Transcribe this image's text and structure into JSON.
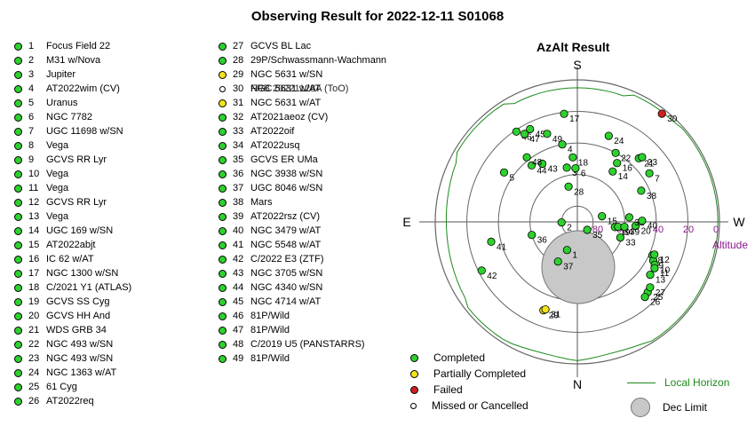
{
  "title": "Observing Result for 2022-12-11 S01068",
  "colors": {
    "completed": "#2ed12e",
    "partial": "#f3e41c",
    "failed": "#d11f1f",
    "missed": "#ffffff",
    "horizon": "#1b8a1b",
    "altitude_label": "#8a1a8a",
    "dec_limit": "#c8c8c8"
  },
  "list_col1": [
    {
      "n": "1",
      "name": "Focus Field 22",
      "status": "completed"
    },
    {
      "n": "2",
      "name": "M31 w/Nova",
      "status": "completed"
    },
    {
      "n": "3",
      "name": "Jupiter",
      "status": "completed"
    },
    {
      "n": "4",
      "name": "AT2022wim (CV)",
      "status": "completed"
    },
    {
      "n": "5",
      "name": "Uranus",
      "status": "completed"
    },
    {
      "n": "6",
      "name": "NGC 7782",
      "status": "completed"
    },
    {
      "n": "7",
      "name": "UGC 11698 w/SN",
      "status": "completed"
    },
    {
      "n": "8",
      "name": "Vega",
      "status": "completed"
    },
    {
      "n": "9",
      "name": "GCVS RR Lyr",
      "status": "completed"
    },
    {
      "n": "10",
      "name": "Vega",
      "status": "completed"
    },
    {
      "n": "11",
      "name": "Vega",
      "status": "completed"
    },
    {
      "n": "12",
      "name": "GCVS RR Lyr",
      "status": "completed"
    },
    {
      "n": "13",
      "name": "Vega",
      "status": "completed"
    },
    {
      "n": "14",
      "name": "UGC 169 w/SN",
      "status": "completed"
    },
    {
      "n": "15",
      "name": "AT2022abjt",
      "status": "completed"
    },
    {
      "n": "16",
      "name": "IC 62 w/AT",
      "status": "completed"
    },
    {
      "n": "17",
      "name": "NGC 1300 w/SN",
      "status": "completed"
    },
    {
      "n": "18",
      "name": "C/2021 Y1 (ATLAS)",
      "status": "completed"
    },
    {
      "n": "19",
      "name": "GCVS SS Cyg",
      "status": "completed"
    },
    {
      "n": "20",
      "name": "GCVS HH And",
      "status": "completed"
    },
    {
      "n": "21",
      "name": "WDS GRB 34",
      "status": "completed"
    },
    {
      "n": "22",
      "name": "NGC 493 w/SN",
      "status": "completed"
    },
    {
      "n": "23",
      "name": "NGC 493 w/SN",
      "status": "completed"
    },
    {
      "n": "24",
      "name": "NGC 1363 w/AT",
      "status": "completed"
    },
    {
      "n": "25",
      "name": "61 Cyg",
      "status": "completed"
    },
    {
      "n": "26",
      "name": "AT2022req",
      "status": "completed"
    }
  ],
  "list_col2": [
    {
      "n": "27",
      "name": "GCVS BL Lac",
      "status": "completed"
    },
    {
      "n": "28",
      "name": "29P/Schwassmann-Wachmann",
      "status": "completed"
    },
    {
      "n": "29",
      "name": "NGC 5631 w/SN",
      "status": "partial"
    },
    {
      "n": "30",
      "name": "NGC 5631 w/AT",
      "name2": "FRB 20221128A (ToO)",
      "status": "missed"
    },
    {
      "n": "31",
      "name": "NGC 5631 w/AT",
      "status": "partial"
    },
    {
      "n": "32",
      "name": "AT2021aeoz (CV)",
      "status": "completed"
    },
    {
      "n": "33",
      "name": "AT2022oif",
      "status": "completed"
    },
    {
      "n": "34",
      "name": "AT2022usq",
      "status": "completed"
    },
    {
      "n": "35",
      "name": "GCVS ER UMa",
      "status": "completed"
    },
    {
      "n": "36",
      "name": "NGC 3938 w/SN",
      "status": "completed"
    },
    {
      "n": "37",
      "name": "UGC 8046 w/SN",
      "status": "completed"
    },
    {
      "n": "38",
      "name": "Mars",
      "status": "completed"
    },
    {
      "n": "39",
      "name": "AT2022rsz (CV)",
      "status": "completed"
    },
    {
      "n": "40",
      "name": "NGC 3479 w/AT",
      "status": "completed"
    },
    {
      "n": "41",
      "name": "NGC 5548 w/AT",
      "status": "completed"
    },
    {
      "n": "42",
      "name": "C/2022 E3 (ZTF)",
      "status": "completed"
    },
    {
      "n": "43",
      "name": "NGC 3705 w/SN",
      "status": "completed"
    },
    {
      "n": "44",
      "name": "NGC 4340 w/SN",
      "status": "completed"
    },
    {
      "n": "45",
      "name": "NGC 4714 w/AT",
      "status": "completed"
    },
    {
      "n": "46",
      "name": "81P/Wild",
      "status": "completed"
    },
    {
      "n": "47",
      "name": "81P/Wild",
      "status": "completed"
    },
    {
      "n": "48",
      "name": "C/2019 U5 (PANSTARRS)",
      "status": "completed"
    },
    {
      "n": "49",
      "name": "81P/Wild",
      "status": "completed"
    }
  ],
  "plot": {
    "title": "AzAlt Result",
    "compass": {
      "S": "S",
      "N": "N",
      "E": "E",
      "W": "W"
    },
    "altitude_label": "Altitude",
    "altitude_ticks": [
      "80",
      "60",
      "40",
      "20",
      "0"
    ],
    "points": [
      {
        "id": "1",
        "az": 20,
        "alt": 71,
        "status": "completed"
      },
      {
        "id": "2",
        "az": 88,
        "alt": 80,
        "status": "completed"
      },
      {
        "id": "3",
        "az": 169,
        "alt": 55,
        "status": "completed"
      },
      {
        "id": "4",
        "az": 169,
        "alt": 40,
        "status": "completed"
      },
      {
        "id": "5",
        "az": 124,
        "alt": 34,
        "status": "completed"
      },
      {
        "id": "6",
        "az": 178,
        "alt": 56,
        "status": "completed"
      },
      {
        "id": "7",
        "az": 236,
        "alt": 35,
        "status": "completed"
      },
      {
        "id": "8",
        "az": 294,
        "alt": 38,
        "status": "completed"
      },
      {
        "id": "9",
        "az": 297,
        "alt": 36,
        "status": "completed"
      },
      {
        "id": "10",
        "az": 299,
        "alt": 34,
        "status": "completed"
      },
      {
        "id": "11",
        "az": 301,
        "alt": 33,
        "status": "completed"
      },
      {
        "id": "12",
        "az": 293,
        "alt": 37,
        "status": "completed"
      },
      {
        "id": "13",
        "az": 306,
        "alt": 33,
        "status": "completed"
      },
      {
        "id": "14",
        "az": 215,
        "alt": 51,
        "status": "completed"
      },
      {
        "id": "15",
        "az": 257,
        "alt": 74,
        "status": "completed"
      },
      {
        "id": "16",
        "az": 214,
        "alt": 45,
        "status": "completed"
      },
      {
        "id": "17",
        "az": 173,
        "alt": 21,
        "status": "completed"
      },
      {
        "id": "18",
        "az": 176,
        "alt": 49,
        "status": "completed"
      },
      {
        "id": "19",
        "az": 278,
        "alt": 66,
        "status": "completed"
      },
      {
        "id": "20",
        "az": 274,
        "alt": 53,
        "status": "completed"
      },
      {
        "id": "21",
        "az": 224,
        "alt": 34,
        "status": "completed"
      },
      {
        "id": "22",
        "az": 209,
        "alt": 40,
        "status": "completed"
      },
      {
        "id": "23",
        "az": 225,
        "alt": 32,
        "status": "completed"
      },
      {
        "id": "24",
        "az": 200,
        "alt": 32,
        "status": "completed"
      },
      {
        "id": "25",
        "az": 315,
        "alt": 27,
        "status": "completed"
      },
      {
        "id": "26",
        "az": 318,
        "alt": 26,
        "status": "completed"
      },
      {
        "id": "27",
        "az": 312,
        "alt": 28,
        "status": "completed"
      },
      {
        "id": "28",
        "az": 166,
        "alt": 67,
        "status": "completed"
      },
      {
        "id": "29",
        "az": 21,
        "alt": 30,
        "status": "partial"
      },
      {
        "id": "30",
        "az": 218,
        "alt": 3,
        "status": "failed"
      },
      {
        "id": "31",
        "az": 20,
        "alt": 31,
        "status": "partial"
      },
      {
        "id": "32",
        "az": 265,
        "alt": 57,
        "status": "completed"
      },
      {
        "id": "33",
        "az": 290,
        "alt": 61,
        "status": "completed"
      },
      {
        "id": "34",
        "az": 277,
        "alt": 64,
        "status": "completed"
      },
      {
        "id": "35",
        "az": 309,
        "alt": 82,
        "status": "completed"
      },
      {
        "id": "36",
        "az": 74,
        "alt": 60,
        "status": "completed"
      },
      {
        "id": "37",
        "az": 26,
        "alt": 62,
        "status": "completed"
      },
      {
        "id": "38",
        "az": 244,
        "alt": 45,
        "status": "completed"
      },
      {
        "id": "39",
        "az": 276,
        "alt": 60,
        "status": "completed"
      },
      {
        "id": "40",
        "az": 269,
        "alt": 49,
        "status": "completed"
      },
      {
        "id": "41",
        "az": 77,
        "alt": 34,
        "status": "completed"
      },
      {
        "id": "42",
        "az": 63,
        "alt": 22,
        "status": "completed"
      },
      {
        "id": "43",
        "az": 149,
        "alt": 47,
        "status": "completed"
      },
      {
        "id": "44",
        "az": 141,
        "alt": 44,
        "status": "completed"
      },
      {
        "id": "45",
        "az": 153,
        "alt": 24,
        "status": "completed"
      },
      {
        "id": "46",
        "az": 146,
        "alt": 21,
        "status": "completed"
      },
      {
        "id": "47",
        "az": 149,
        "alt": 25,
        "status": "completed"
      },
      {
        "id": "48",
        "az": 142,
        "alt": 38,
        "status": "completed"
      },
      {
        "id": "49",
        "az": 161,
        "alt": 31,
        "status": "completed"
      }
    ]
  },
  "legend": {
    "completed": "Completed",
    "partial": "Partially Completed",
    "failed": "Failed",
    "missed": "Missed or Cancelled",
    "horizon": "Local Horizon",
    "dec_limit": "Dec Limit"
  }
}
